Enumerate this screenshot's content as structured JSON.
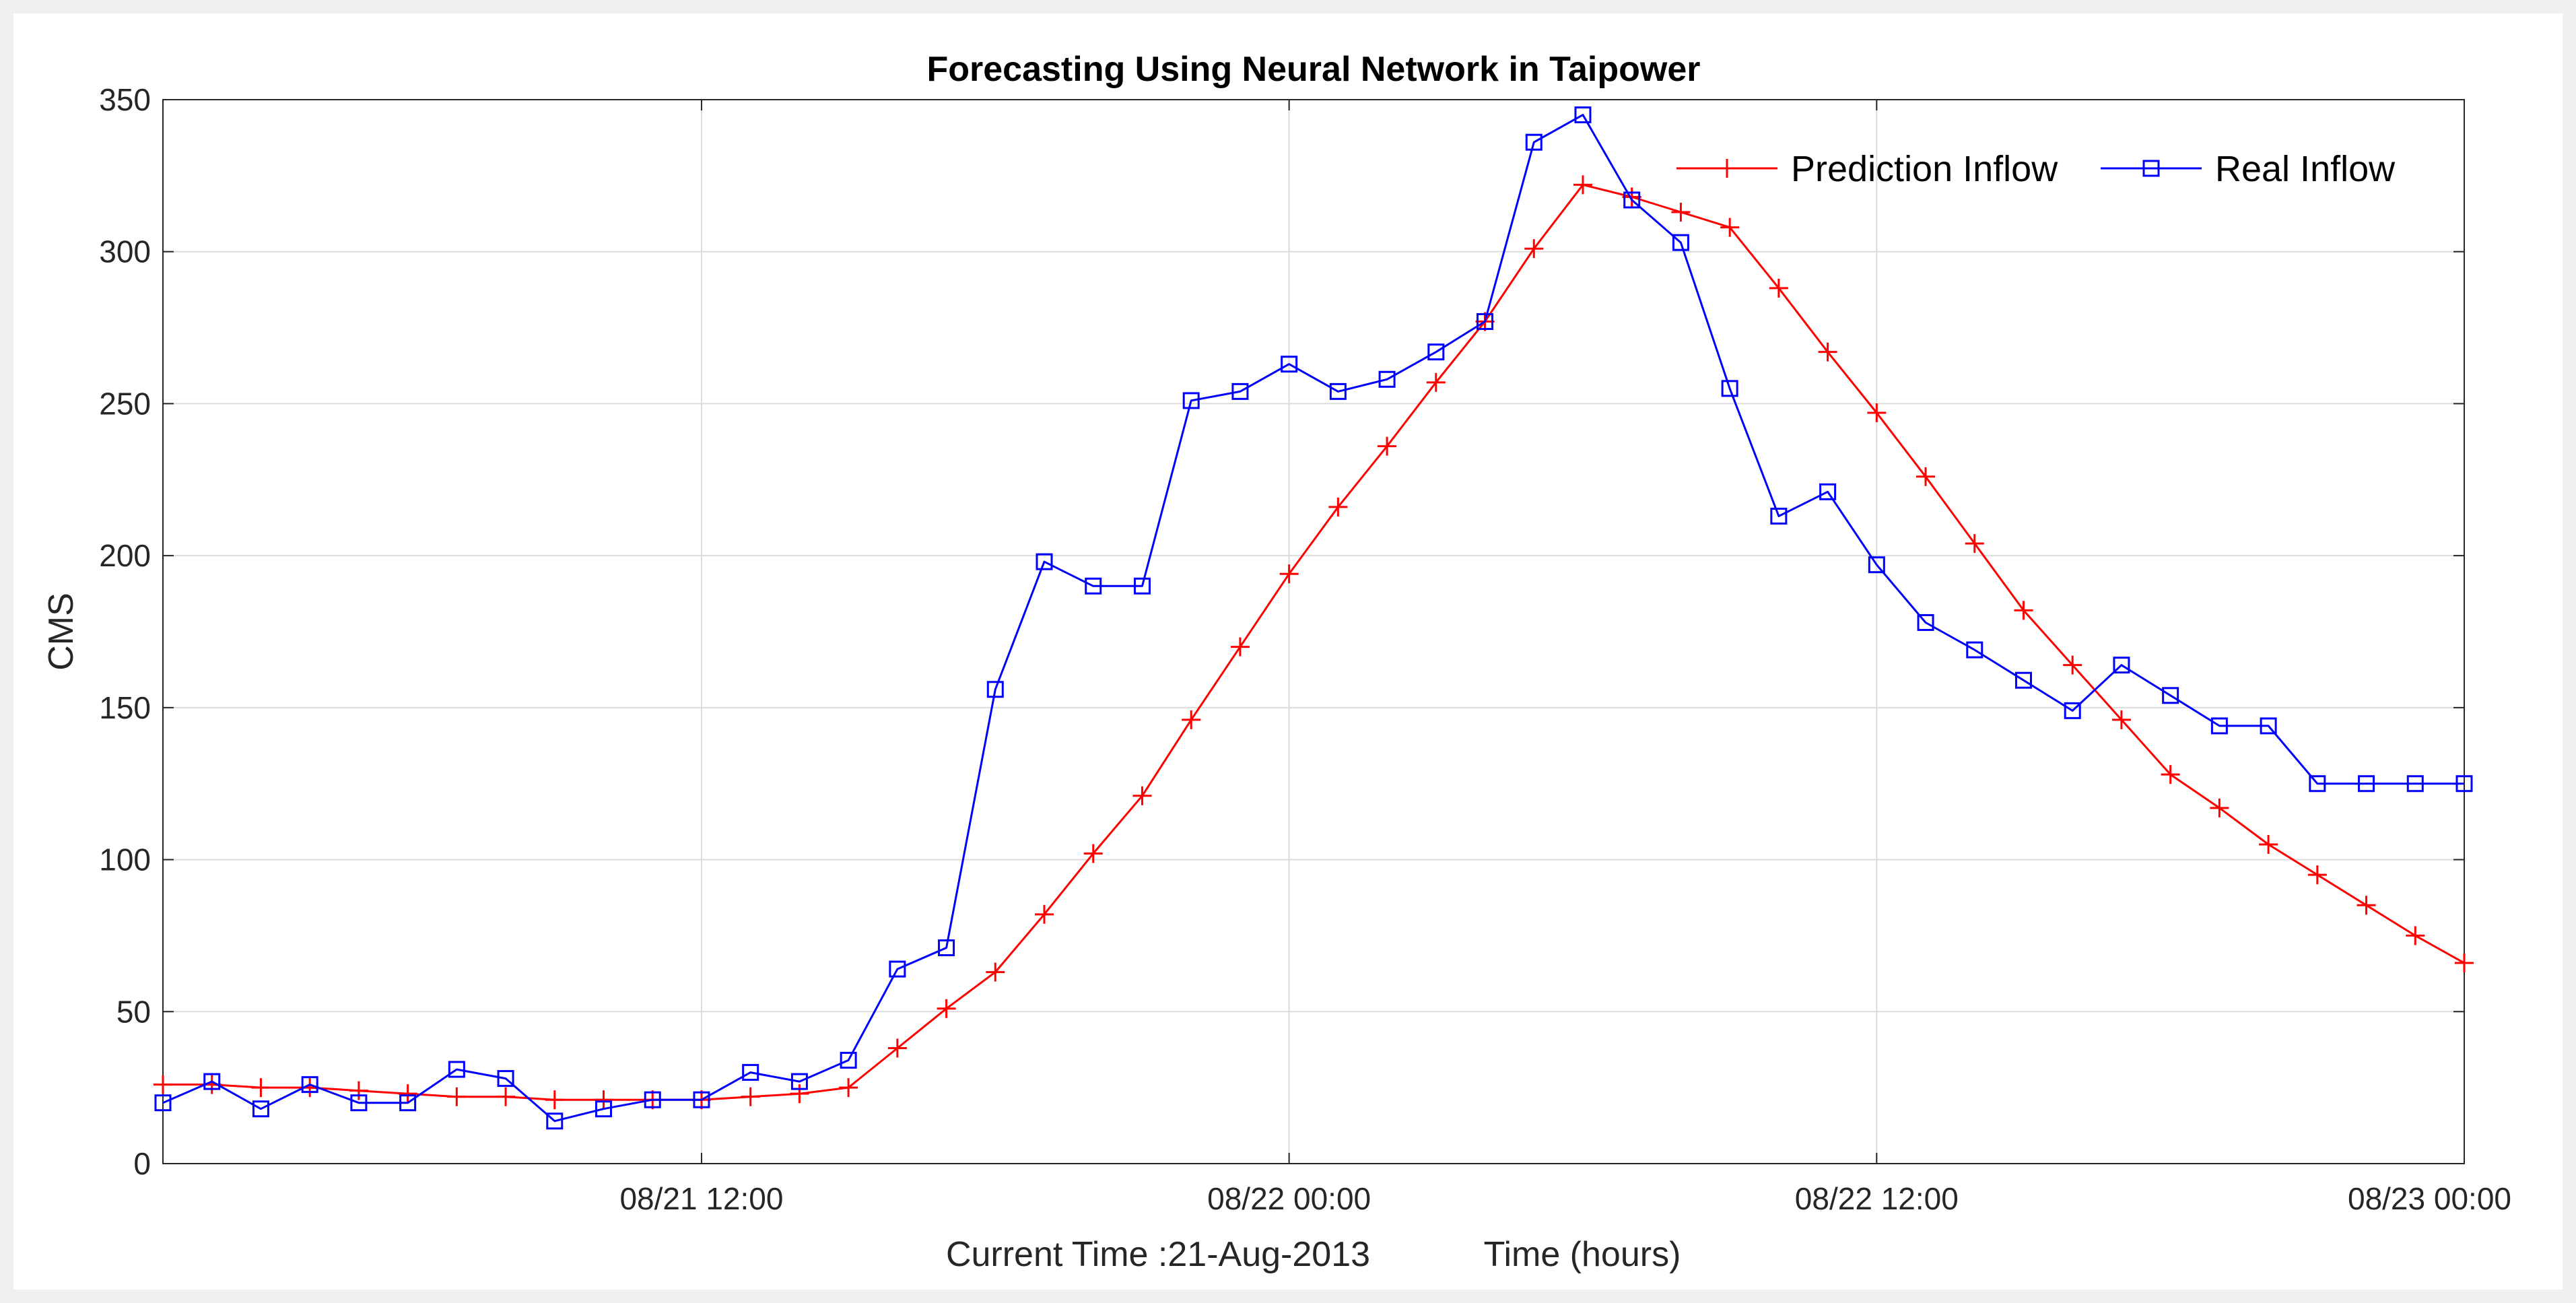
{
  "chart_data": {
    "type": "line",
    "title": "Forecasting Using Neural Network in Taipower",
    "ylabel": "CMS",
    "xlabel": "Time (hours)",
    "xlabel_prefix": "Current Time :21-Aug-2013",
    "ylim": [
      0,
      350
    ],
    "yticks": [
      0,
      50,
      100,
      150,
      200,
      250,
      300,
      350
    ],
    "xlim_hours": [
      0,
      47
    ],
    "xticks": [
      {
        "hour": 11,
        "label": "08/21 12:00"
      },
      {
        "hour": 23,
        "label": "08/22 00:00"
      },
      {
        "hour": 35,
        "label": "08/22 12:00"
      },
      {
        "hour": 47,
        "label": "08/23 00:00"
      }
    ],
    "grid": true,
    "legend_position": "top-right",
    "series": [
      {
        "name": "Prediction Inflow",
        "color": "#ff0000",
        "marker": "plus",
        "values": [
          26,
          26,
          25,
          25,
          24,
          23,
          22,
          22,
          21,
          21,
          21,
          21,
          22,
          23,
          25,
          38,
          51,
          63,
          82,
          102,
          121,
          146,
          170,
          194,
          216,
          236,
          257,
          277,
          301,
          322,
          318,
          313,
          308,
          288,
          267,
          247,
          226,
          204,
          182,
          164,
          146,
          128,
          117,
          105,
          95,
          85,
          75,
          66
        ]
      },
      {
        "name": "Real Inflow",
        "color": "#0000ff",
        "marker": "square",
        "values": [
          20,
          27,
          18,
          26,
          20,
          20,
          31,
          28,
          14,
          18,
          21,
          21,
          30,
          27,
          34,
          64,
          71,
          156,
          198,
          190,
          190,
          251,
          254,
          263,
          254,
          258,
          267,
          277,
          336,
          345,
          317,
          303,
          255,
          213,
          221,
          197,
          178,
          169,
          159,
          149,
          164,
          154,
          144,
          144,
          125,
          125,
          125,
          125
        ]
      }
    ]
  }
}
